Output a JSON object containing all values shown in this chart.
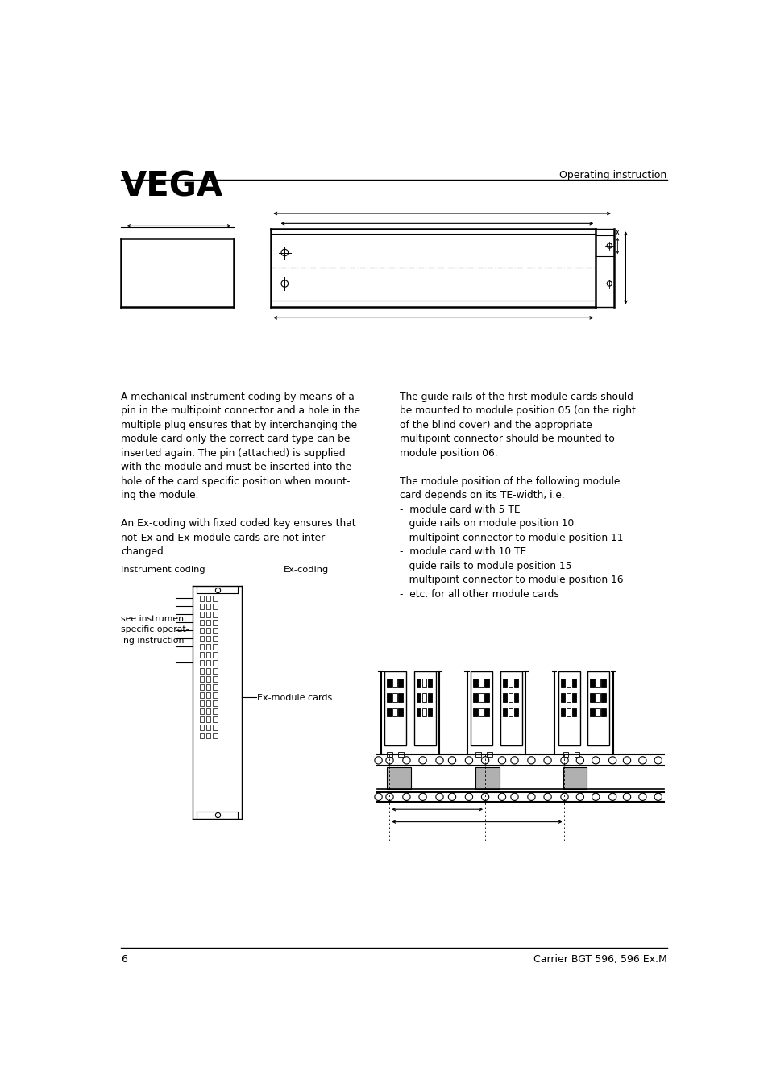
{
  "bg_color": "#ffffff",
  "logo_text": "VEGA",
  "header_right_text": "Operating instruction",
  "footer_left_text": "6",
  "footer_right_text": "Carrier BGT 596, 596 Ex.M",
  "body_text_left": "A mechanical instrument coding by means of a\npin in the multipoint connector and a hole in the\nmultiple plug ensures that by interchanging the\nmodule card only the correct card type can be\ninserted again. The pin (attached) is supplied\nwith the module and must be inserted into the\nhole of the card specific position when mount-\ning the module.\n\nAn Ex-coding with fixed coded key ensures that\nnot-Ex and Ex-module cards are not inter-\nchanged.",
  "body_text_right": "The guide rails of the first module cards should\nbe mounted to module position 05 (on the right\nof the blind cover) and the appropriate\nmultipoint connector should be mounted to\nmodule position 06.\n\nThe module position of the following module\ncard depends on its TE-width, i.e.\n-  module card with 5 TE\n   guide rails on module position 10\n   multipoint connector to module position 11\n-  module card with 10 TE\n   guide rails to module position 15\n   multipoint connector to module position 16\n-  etc. for all other module cards",
  "label_instrument_coding": "Instrument coding",
  "label_ex_coding": "Ex-coding",
  "label_see_instrument": "see instrument\nspecific operat-\ning instruction",
  "label_ex_module_cards": "Ex-module cards"
}
